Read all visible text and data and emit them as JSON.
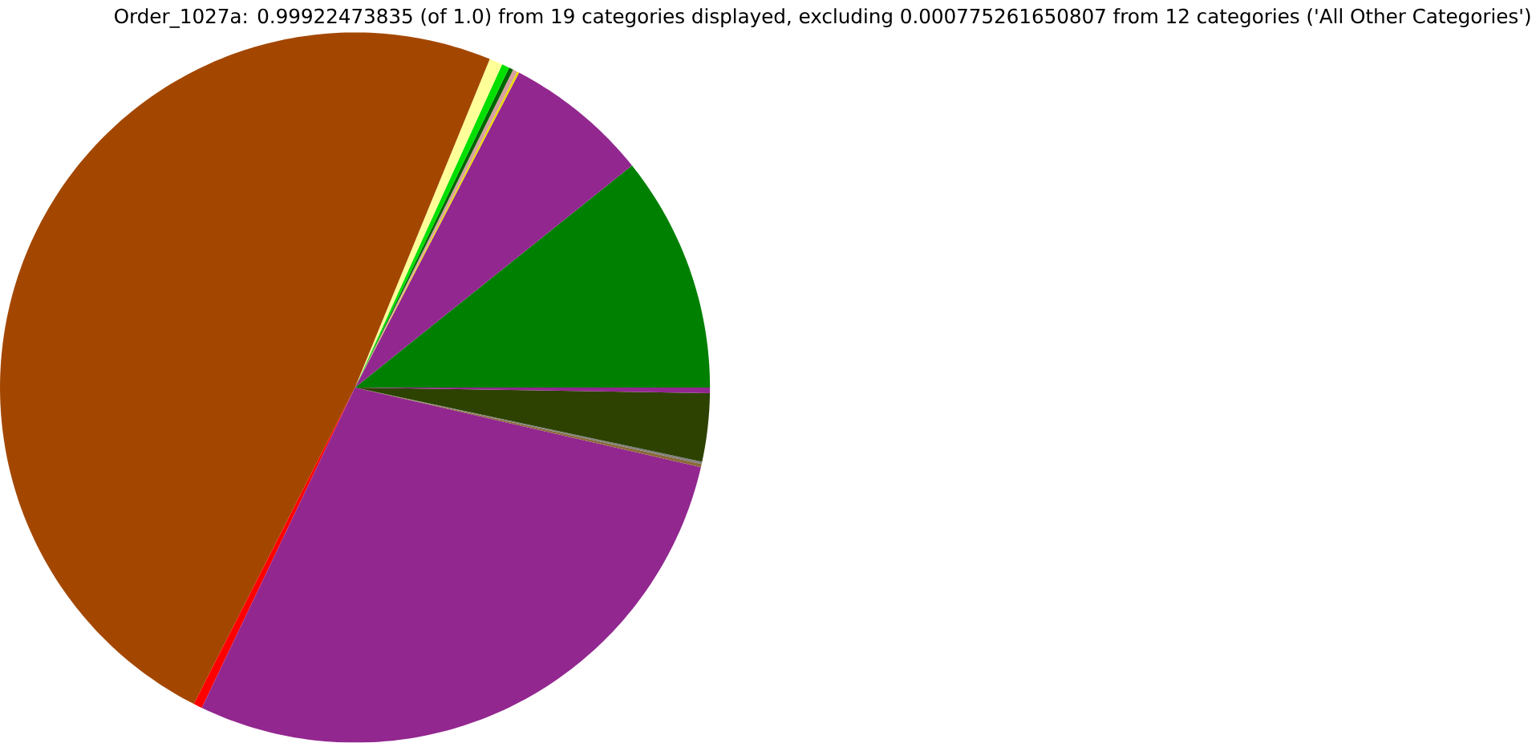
{
  "chart_data": {
    "type": "pie",
    "title": "Order_1027a: 0.99922473835 (of 1.0) from 19 categories displayed, excluding 0.000775261650807 from 12 categories ('All Other Categories')",
    "categories": [
      null,
      null,
      null,
      null,
      null,
      null,
      null,
      null,
      null,
      null,
      null,
      null,
      null,
      null
    ],
    "values": [
      10.75,
      6.6,
      0.1,
      0.2,
      0.2,
      0.35,
      0.6,
      48.7,
      0.4,
      28.5,
      0.15,
      0.1,
      3.1,
      0.25
    ],
    "colors": [
      "#008000",
      "#92278f",
      "#e8d800",
      "#d8a0a0",
      "#006400",
      "#00e000",
      "#ffff99",
      "#a34700",
      "#ff0000",
      "#92278f",
      "#8b6a3a",
      "#808080",
      "#2d4200",
      "#92278f"
    ]
  }
}
